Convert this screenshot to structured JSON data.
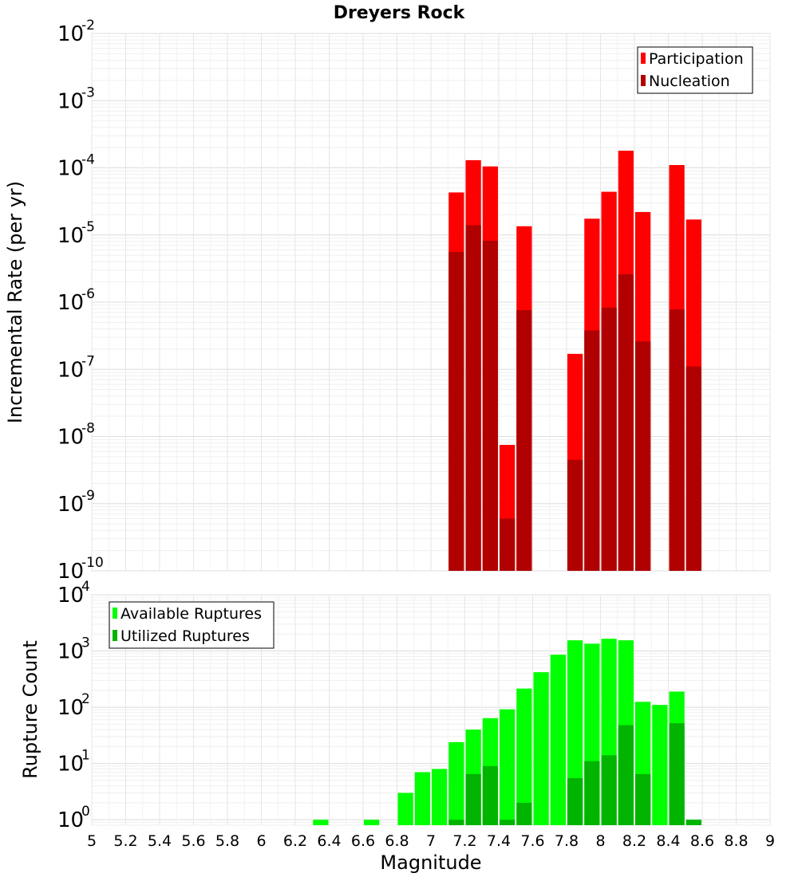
{
  "chart_data": [
    {
      "type": "bar",
      "scale": "log",
      "title": "Dreyers Rock",
      "xlabel": "",
      "ylabel": "Incremental Rate (per yr)",
      "xlim": [
        5,
        9
      ],
      "ylim": [
        1e-10,
        0.01
      ],
      "ytick_exponents": [
        "-10",
        "-9",
        "-8",
        "-7",
        "-6",
        "-5",
        "-4",
        "-3",
        "-2"
      ],
      "legend": {
        "position": "top-right",
        "entries": [
          "Participation",
          "Nucleation"
        ]
      },
      "series": [
        {
          "name": "Participation",
          "color": "#ff0000",
          "x": [
            7.15,
            7.25,
            7.35,
            7.45,
            7.55,
            7.85,
            7.95,
            8.05,
            8.15,
            8.25,
            8.45,
            8.55
          ],
          "values": [
            4.3e-05,
            0.00013,
            0.000105,
            7.5e-09,
            1.35e-05,
            1.7e-07,
            1.75e-05,
            4.4e-05,
            0.00018,
            2.2e-05,
            0.00011,
            1.7e-05
          ]
        },
        {
          "name": "Nucleation",
          "color": "#b00000",
          "x": [
            7.15,
            7.25,
            7.35,
            7.45,
            7.55,
            7.85,
            7.95,
            8.05,
            8.15,
            8.25,
            8.45,
            8.55
          ],
          "values": [
            5.6e-06,
            1.4e-05,
            8.2e-06,
            6e-10,
            7.6e-07,
            4.5e-09,
            3.8e-07,
            8.3e-07,
            2.6e-06,
            2.6e-07,
            7.8e-07,
            1.1e-07
          ]
        }
      ]
    },
    {
      "type": "bar",
      "scale": "log",
      "title": "",
      "xlabel": "Magnitude",
      "ylabel": "Rupture Count",
      "xlim": [
        5,
        9
      ],
      "ylim": [
        0.8,
        10000.0
      ],
      "xticks": [
        "5",
        "5.2",
        "5.4",
        "5.6",
        "5.8",
        "6",
        "6.2",
        "6.4",
        "6.6",
        "6.8",
        "7",
        "7.2",
        "7.4",
        "7.6",
        "7.8",
        "8",
        "8.2",
        "8.4",
        "8.6",
        "8.8",
        "9"
      ],
      "ytick_exponents": [
        "0",
        "1",
        "2",
        "3",
        "4"
      ],
      "legend": {
        "position": "top-left",
        "entries": [
          "Available Ruptures",
          "Utilized Ruptures"
        ]
      },
      "series": [
        {
          "name": "Available Ruptures",
          "color": "#00ff00",
          "x": [
            6.35,
            6.65,
            6.85,
            6.95,
            7.05,
            7.15,
            7.25,
            7.35,
            7.45,
            7.55,
            7.65,
            7.75,
            7.85,
            7.95,
            8.05,
            8.15,
            8.25,
            8.35,
            8.45,
            8.55
          ],
          "values": [
            1,
            1,
            3,
            7,
            8,
            24,
            40,
            64,
            92,
            215,
            420,
            860,
            1550,
            1350,
            1650,
            1550,
            125,
            110,
            190,
            1
          ]
        },
        {
          "name": "Utilized Ruptures",
          "color": "#00b400",
          "x": [
            7.15,
            7.25,
            7.35,
            7.45,
            7.55,
            7.85,
            7.95,
            8.05,
            8.15,
            8.25,
            8.45,
            8.55
          ],
          "values": [
            1,
            6.5,
            9,
            1,
            2,
            5.5,
            11,
            14,
            48,
            6.5,
            52,
            1
          ]
        }
      ]
    }
  ]
}
